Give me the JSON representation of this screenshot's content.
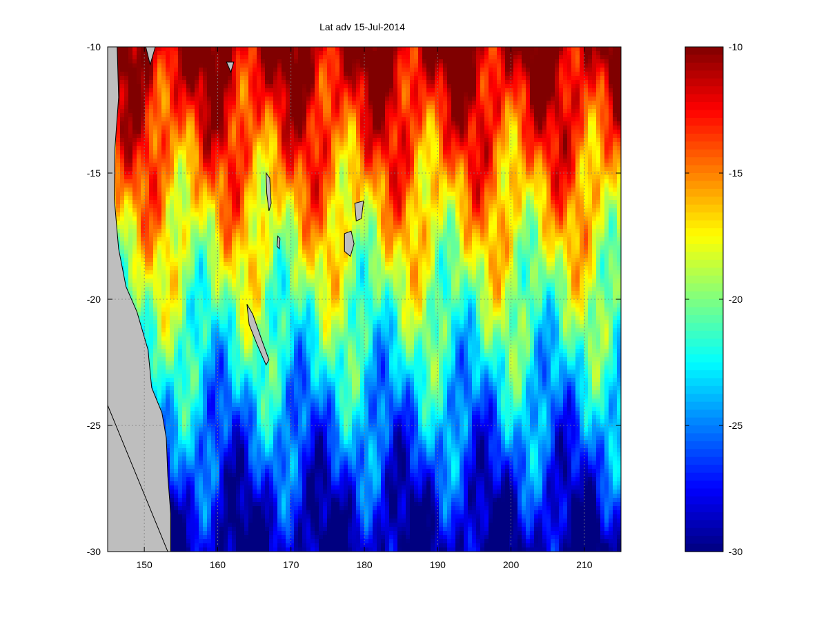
{
  "chart_data": {
    "type": "heatmap",
    "title": "Lat adv 15-Jul-2014",
    "xlabel": "",
    "ylabel": "",
    "xlim": [
      145,
      215
    ],
    "ylim": [
      -30,
      -10
    ],
    "xticks": [
      "150",
      "160",
      "170",
      "180",
      "190",
      "200",
      "210"
    ],
    "xtick_values": [
      150,
      160,
      170,
      180,
      190,
      200,
      210
    ],
    "yticks": [
      "-10",
      "-15",
      "-20",
      "-25",
      "-30"
    ],
    "ytick_values": [
      -10,
      -15,
      -20,
      -25,
      -30
    ],
    "grid": true,
    "colormap": "jet",
    "land_color": "#bebebe",
    "colorbar": {
      "clim": [
        -30,
        -10
      ],
      "ticks": [
        "-10",
        "-15",
        "-20",
        "-25",
        "-30"
      ],
      "tick_values": [
        -10,
        -15,
        -20,
        -25,
        -30
      ]
    },
    "field_description_values": {
      "value_at_north_edge": -10,
      "value_at_south_edge": -30
    }
  }
}
